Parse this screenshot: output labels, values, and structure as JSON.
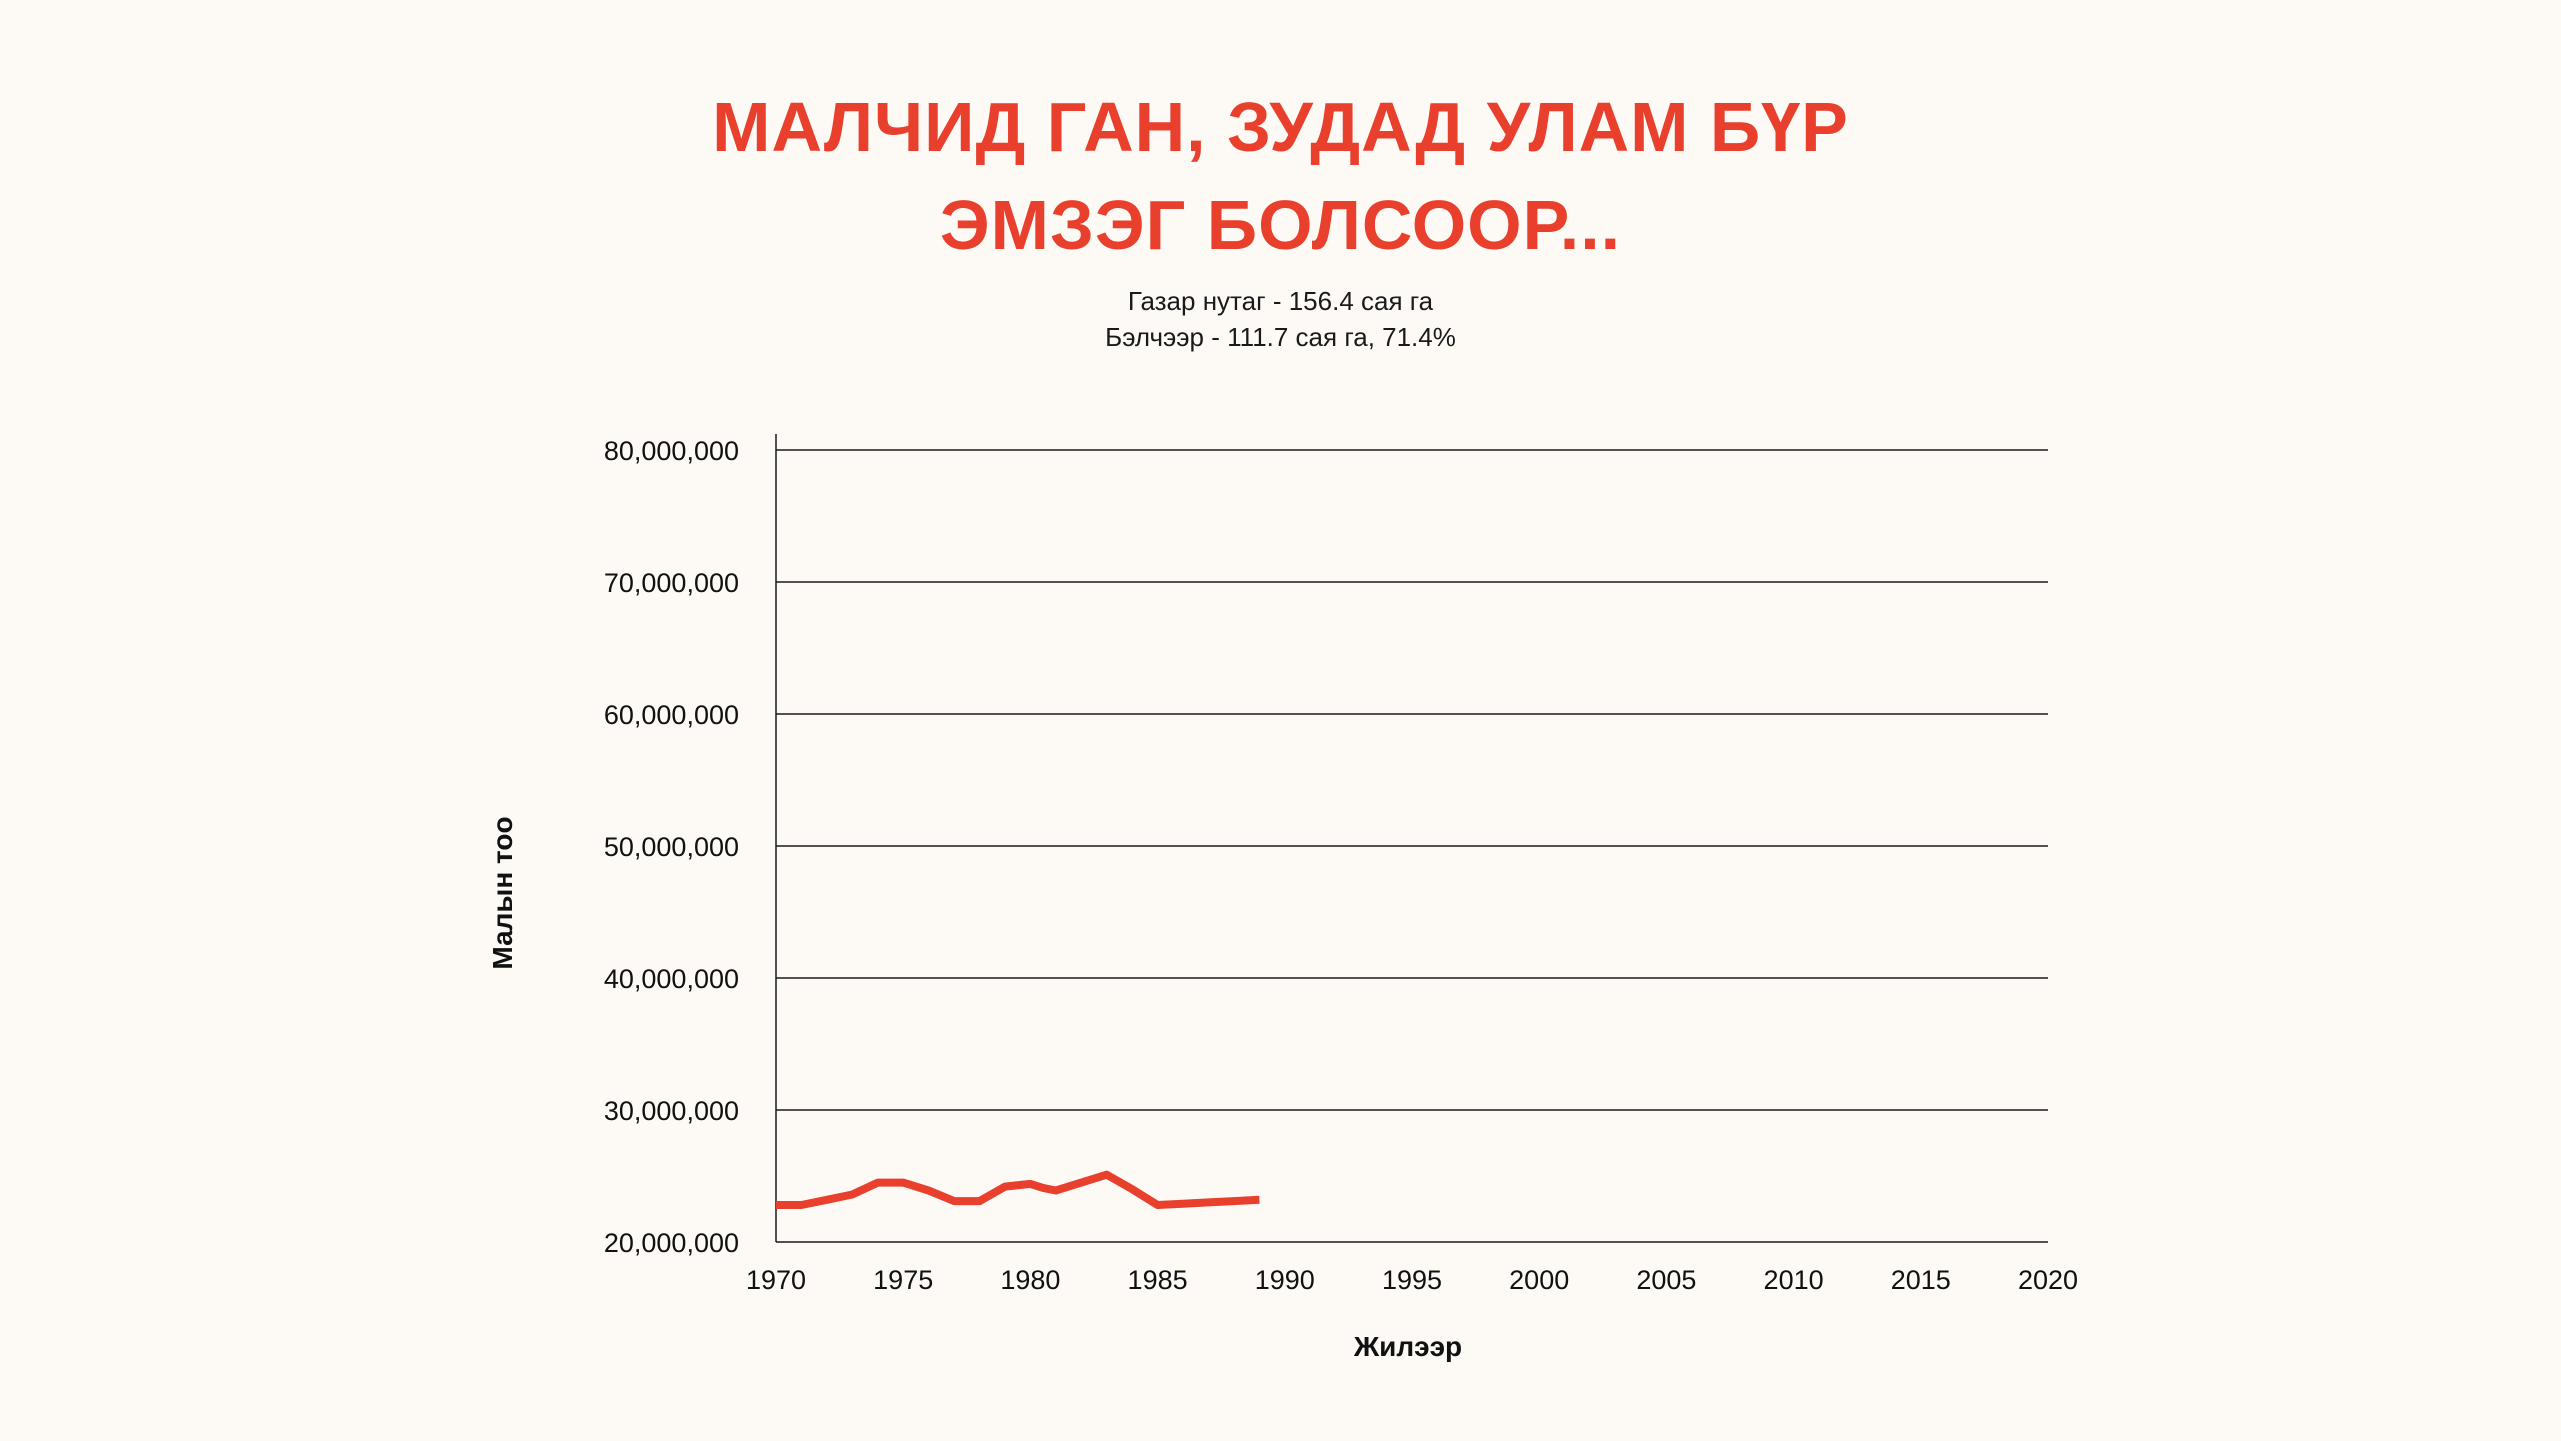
{
  "header": {
    "title_line1": "МАЛЧИД ГАН, ЗУДАД УЛАМ БҮР",
    "title_line2": "ЭМЗЭГ БОЛСООР...",
    "subtitle_line1": "Газар нутаг - 156.4 сая га",
    "subtitle_line2": "Бэлчээр - 111.7 сая га, 71.4%"
  },
  "colors": {
    "accent": "#e8402c",
    "text": "#111111",
    "grid": "#1a1a1a",
    "background": "#fdfaf6"
  },
  "chart_data": {
    "type": "line",
    "title": "",
    "xlabel": "Жилээр",
    "ylabel": "Малын тоо",
    "xlim": [
      1970,
      2020
    ],
    "ylim": [
      20000000,
      80000000
    ],
    "x_ticks": [
      1970,
      1975,
      1980,
      1985,
      1990,
      1995,
      2000,
      2005,
      2010,
      2015,
      2020
    ],
    "y_ticks": [
      20000000,
      30000000,
      40000000,
      50000000,
      60000000,
      70000000,
      80000000
    ],
    "x_tick_labels": [
      "1970",
      "1975",
      "1980",
      "1985",
      "1990",
      "1995",
      "2000",
      "2005",
      "2010",
      "2015",
      "2020"
    ],
    "y_tick_labels": [
      "20,000,000",
      "30,000,000",
      "40,000,000",
      "50,000,000",
      "60,000,000",
      "70,000,000",
      "80,000,000"
    ],
    "grid": true,
    "grid_axis": "y",
    "legend": "none",
    "series": [
      {
        "color": "#e8402c",
        "x": [
          1970,
          1971,
          1972,
          1973,
          1974,
          1975,
          1976,
          1977,
          1978,
          1979,
          1980,
          1980.5,
          1981,
          1982,
          1983,
          1984,
          1985,
          1986,
          1987,
          1988,
          1989
        ],
        "y": [
          22800000,
          22800000,
          23200000,
          23600000,
          24500000,
          24500000,
          23900000,
          23100000,
          23100000,
          24200000,
          24400000,
          24100000,
          23900000,
          24500000,
          25100000,
          24000000,
          22800000,
          22900000,
          23000000,
          23100000,
          23200000
        ]
      }
    ]
  }
}
